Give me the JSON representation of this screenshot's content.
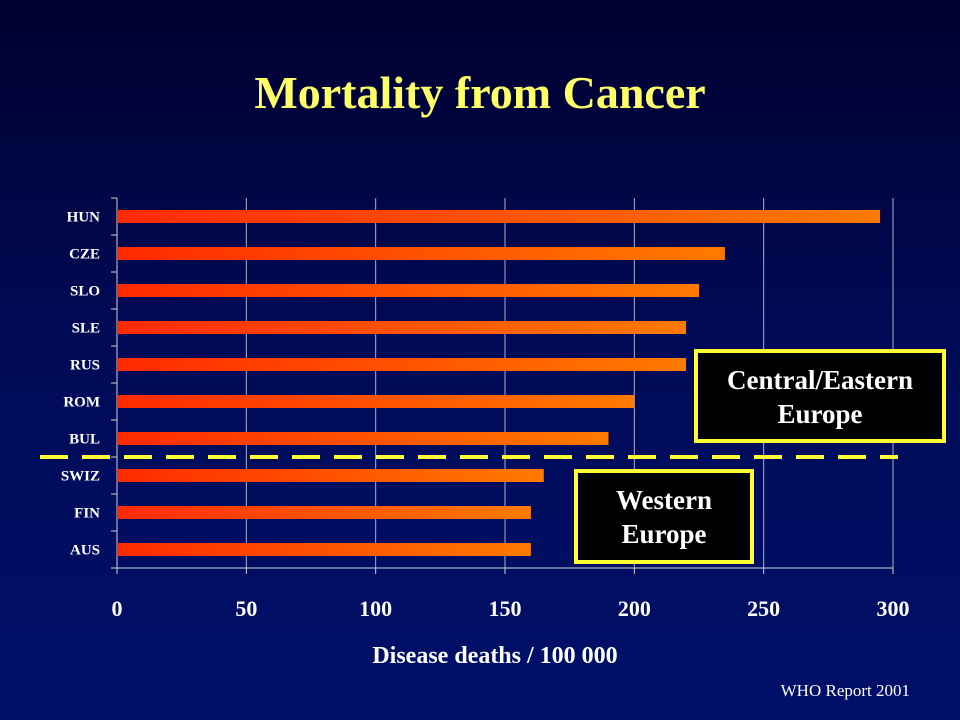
{
  "title": "Mortality from Cancer",
  "source": "WHO Report 2001",
  "annotations": {
    "central_eastern": [
      "Central/Eastern",
      "Europe"
    ],
    "western": [
      "Western",
      "Europe"
    ]
  },
  "colors": {
    "bar_start": "#ff2a00",
    "bar_end": "#ff7a00",
    "box_border": "#ffff33",
    "divider": "#ffff33",
    "title": "#ffff66"
  },
  "chart_data": {
    "type": "bar",
    "orientation": "horizontal",
    "categories": [
      "HUN",
      "CZE",
      "SLO",
      "SLE",
      "RUS",
      "ROM",
      "BUL",
      "SWIZ",
      "FIN",
      "AUS"
    ],
    "values": [
      295,
      235,
      225,
      220,
      220,
      200,
      190,
      165,
      160,
      160
    ],
    "xlabel": "Disease deaths / 100 000",
    "ylabel": "",
    "xlim": [
      0,
      300
    ],
    "xticks": [
      "0",
      "50",
      "100",
      "150",
      "200",
      "250",
      "300"
    ],
    "grid": true,
    "groups": [
      {
        "label": "Central/Eastern Europe",
        "categories": [
          "HUN",
          "CZE",
          "SLO",
          "SLE",
          "RUS",
          "ROM",
          "BUL"
        ]
      },
      {
        "label": "Western Europe",
        "categories": [
          "SWIZ",
          "FIN",
          "AUS"
        ]
      }
    ]
  }
}
